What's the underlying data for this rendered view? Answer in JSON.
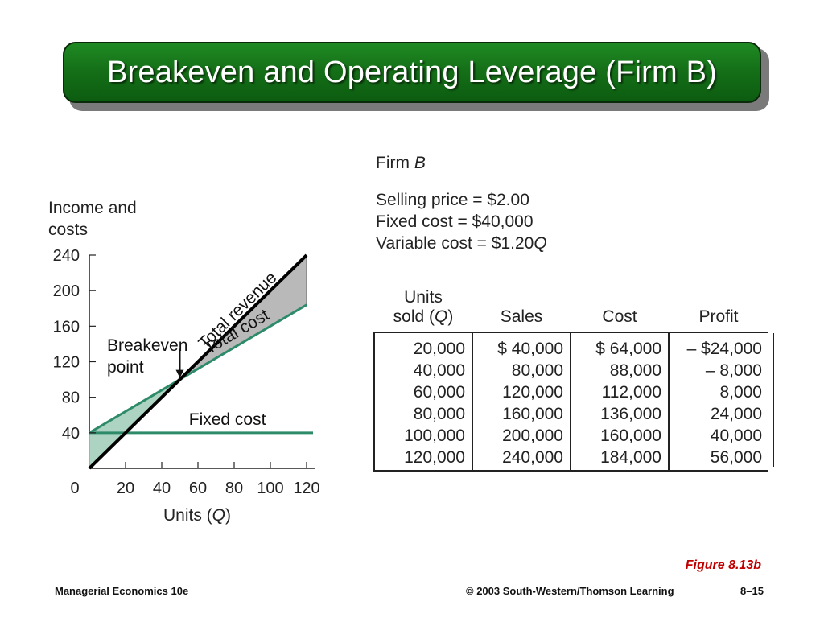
{
  "title": "Breakeven and Operating Leverage (Firm B)",
  "firm_label": "Firm",
  "firm_name": "B",
  "params": {
    "price": "Selling price = $2.00",
    "fixed": "Fixed cost = $40,000",
    "variable_prefix": "Variable cost = $1.20",
    "variable_var": "Q"
  },
  "table": {
    "headers": {
      "units_line1": "Units",
      "units_line2_prefix": "sold (",
      "units_var": "Q",
      "units_line2_suffix": ")",
      "sales": "Sales",
      "cost": "Cost",
      "profit": "Profit"
    },
    "rows": [
      {
        "units": "20,000",
        "sales": "$ 40,000",
        "cost": "$ 64,000",
        "profit": "– $24,000"
      },
      {
        "units": "40,000",
        "sales": "80,000",
        "cost": "88,000",
        "profit": "– 8,000"
      },
      {
        "units": "60,000",
        "sales": "120,000",
        "cost": "112,000",
        "profit": "8,000"
      },
      {
        "units": "80,000",
        "sales": "160,000",
        "cost": "136,000",
        "profit": "24,000"
      },
      {
        "units": "100,000",
        "sales": "200,000",
        "cost": "160,000",
        "profit": "40,000"
      },
      {
        "units": "120,000",
        "sales": "240,000",
        "cost": "184,000",
        "profit": "56,000"
      }
    ]
  },
  "chart_data": {
    "type": "line",
    "ylabel_line1": "Income and",
    "ylabel_line2": "costs",
    "xlabel_prefix": "Units (",
    "xlabel_var": "Q",
    "xlabel_suffix": ")",
    "xlim": [
      0,
      120
    ],
    "ylim": [
      0,
      240
    ],
    "xticks": [
      0,
      20,
      40,
      60,
      80,
      100,
      120
    ],
    "yticks": [
      40,
      80,
      120,
      160,
      200,
      240
    ],
    "series": [
      {
        "name": "Total revenue",
        "color": "#000000",
        "x": [
          0,
          120
        ],
        "y": [
          0,
          240
        ]
      },
      {
        "name": "Total cost",
        "color": "#2e8b6a",
        "x": [
          0,
          120
        ],
        "y": [
          40,
          184
        ]
      },
      {
        "name": "Fixed cost",
        "color": "#2e8b6a",
        "x": [
          0,
          120
        ],
        "y": [
          40,
          40
        ]
      }
    ],
    "annotations": [
      {
        "text_line1": "Breakeven",
        "text_line2": "point",
        "x": 50,
        "y": 100
      }
    ]
  },
  "figure_caption": "Figure 8.13b",
  "footer": {
    "left": "Managerial Economics 10e",
    "middle": "© 2003 South-Western/Thomson Learning",
    "right": "8–15"
  }
}
